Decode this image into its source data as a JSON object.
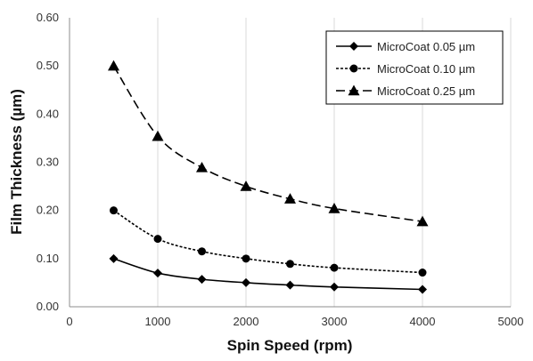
{
  "chart_data": {
    "type": "line",
    "title": "",
    "xlabel": "Spin Speed (rpm)",
    "ylabel": "Film Thickness (µm)",
    "xlim": [
      0,
      5000
    ],
    "ylim": [
      0,
      0.6
    ],
    "xticks": [
      "0",
      "1000",
      "2000",
      "3000",
      "4000",
      "5000"
    ],
    "yticks": [
      "0.00",
      "0.10",
      "0.20",
      "0.30",
      "0.40",
      "0.50",
      "0.60"
    ],
    "grid": "vertical",
    "legend_position": "top-right",
    "x": [
      500,
      1000,
      1500,
      2000,
      2500,
      3000,
      4000
    ],
    "series": [
      {
        "name": "MicroCoat 0.05 µm",
        "marker": "diamond",
        "line": "solid",
        "color": "#000000",
        "values": [
          0.1,
          0.07,
          0.057,
          0.05,
          0.045,
          0.041,
          0.036
        ]
      },
      {
        "name": "MicroCoat 0.10 µm",
        "marker": "circle",
        "line": "dotted",
        "color": "#000000",
        "values": [
          0.2,
          0.141,
          0.115,
          0.1,
          0.089,
          0.081,
          0.071
        ]
      },
      {
        "name": "MicroCoat 0.25 µm",
        "marker": "triangle",
        "line": "dashed",
        "color": "#000000",
        "values": [
          0.5,
          0.354,
          0.289,
          0.25,
          0.224,
          0.204,
          0.177
        ]
      }
    ]
  }
}
